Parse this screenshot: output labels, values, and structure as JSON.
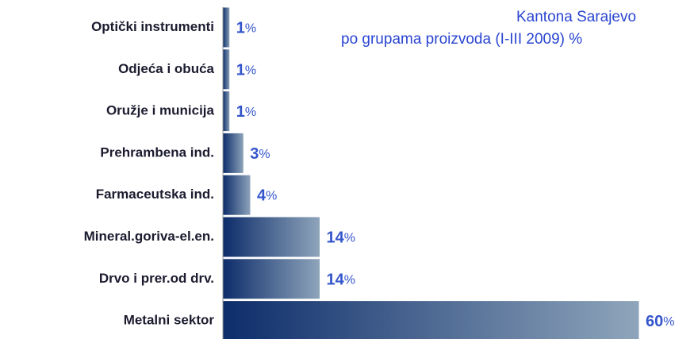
{
  "chart_data": {
    "type": "barh",
    "title": [
      "Kantona Sarajevo",
      "po grupama proizvoda (I-III 2009) %"
    ],
    "categories": [
      "Optički instrumenti",
      "Odjeća i obuća",
      "Oružje i municija",
      "Prehrambena ind.",
      "Farmaceutska ind.",
      "Mineral.goriva-el.en.",
      "Drvo i prer.od drv.",
      "Metalni sektor"
    ],
    "values": [
      1,
      1,
      1,
      3,
      4,
      14,
      14,
      60
    ],
    "value_labels": [
      "1%",
      "1%",
      "1%",
      "3%",
      "4%",
      "14%",
      "14%",
      "60%"
    ],
    "color": [
      "#0d2d6b",
      "#8fa5bb"
    ],
    "xlim": [
      0,
      60
    ]
  }
}
